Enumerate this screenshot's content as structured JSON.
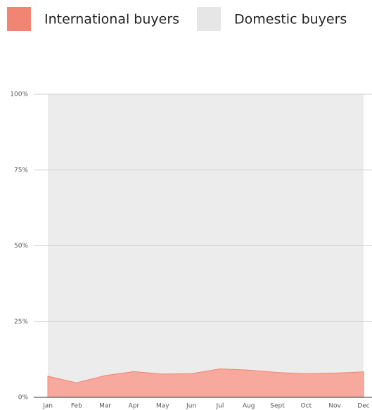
{
  "chart_data": {
    "type": "stacked_area",
    "categories": [
      "Jan",
      "Feb",
      "Mar",
      "Apr",
      "May",
      "Jun",
      "Jul",
      "Aug",
      "Sept",
      "Oct",
      "Nov",
      "Dec"
    ],
    "series": [
      {
        "name": "International buyers",
        "color": "#f28472",
        "values": [
          7,
          4.8,
          7.2,
          8.5,
          7.7,
          7.8,
          9.4,
          9,
          8.2,
          7.8,
          8,
          8.4
        ]
      },
      {
        "name": "Domestic buyers",
        "color": "#e6e6e6",
        "values": [
          93,
          95.2,
          92.8,
          91.5,
          92.3,
          92.2,
          90.6,
          91,
          91.8,
          92.2,
          92,
          91.6
        ]
      }
    ],
    "ylim": [
      0,
      100
    ],
    "yticks": [
      {
        "value": 0,
        "label": "0%"
      },
      {
        "value": 25,
        "label": "25%"
      },
      {
        "value": 50,
        "label": "50%"
      },
      {
        "value": 75,
        "label": "75%"
      },
      {
        "value": 100,
        "label": "100%"
      }
    ],
    "grid": true,
    "legend": "top"
  }
}
